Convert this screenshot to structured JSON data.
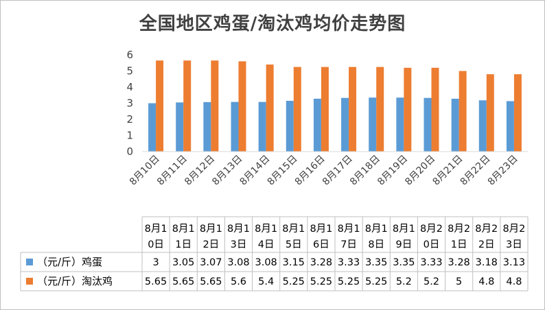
{
  "chart_data": {
    "type": "bar",
    "title": "全国地区鸡蛋/淘汰鸡均价走势图",
    "categories": [
      "8月10日",
      "8月11日",
      "8月12日",
      "8月13日",
      "8月14日",
      "8月15日",
      "8月16日",
      "8月17日",
      "8月18日",
      "8月19日",
      "8月20日",
      "8月21日",
      "8月22日",
      "8月23日"
    ],
    "table_categories": [
      [
        "8月1",
        "0日"
      ],
      [
        "8月1",
        "1日"
      ],
      [
        "8月1",
        "2日"
      ],
      [
        "8月1",
        "3日"
      ],
      [
        "8月1",
        "4日"
      ],
      [
        "8月1",
        "5日"
      ],
      [
        "8月1",
        "6日"
      ],
      [
        "8月1",
        "7日"
      ],
      [
        "8月1",
        "8日"
      ],
      [
        "8月1",
        "9日"
      ],
      [
        "8月2",
        "0日"
      ],
      [
        "8月2",
        "1日"
      ],
      [
        "8月2",
        "2日"
      ],
      [
        "8月2",
        "3日"
      ]
    ],
    "series": [
      {
        "name": "（元/斤）鸡蛋",
        "color": "#5B9BD5",
        "values": [
          3,
          3.05,
          3.07,
          3.08,
          3.08,
          3.15,
          3.28,
          3.33,
          3.35,
          3.35,
          3.33,
          3.28,
          3.18,
          3.13
        ]
      },
      {
        "name": "（元/斤）淘汰鸡",
        "color": "#ED7D31",
        "values": [
          5.65,
          5.65,
          5.65,
          5.6,
          5.4,
          5.25,
          5.25,
          5.25,
          5.25,
          5.2,
          5.2,
          5,
          4.8,
          4.8
        ]
      }
    ],
    "ylim": [
      0,
      6
    ],
    "yticks": [
      0,
      1,
      2,
      3,
      4,
      5,
      6
    ],
    "grid": false,
    "legend": "data-table"
  }
}
